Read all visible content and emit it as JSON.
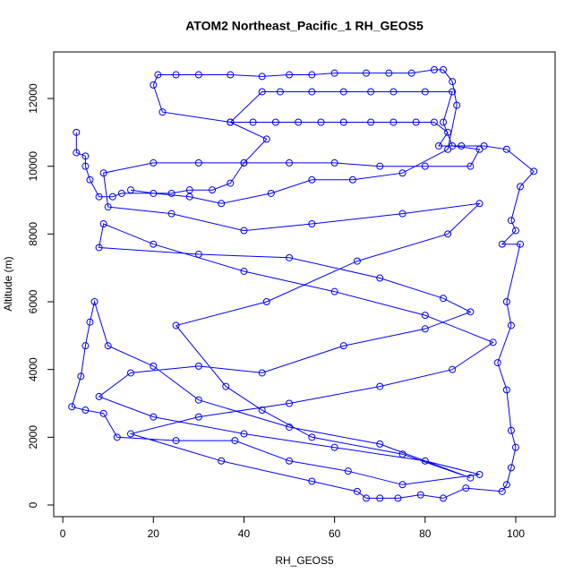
{
  "chart_data": {
    "type": "line",
    "title": "ATOM2 Northeast_Pacific_1 RH_GEOS5",
    "x_label": "RH_GEOS5",
    "y_label": "Altitude (m)",
    "color": "#0000ff",
    "markers": true,
    "xlim": [
      -2,
      108.7
    ],
    "ylim": [
      -344,
      13375
    ],
    "xticks": [
      0,
      20,
      40,
      60,
      80,
      100
    ],
    "yticks": [
      0,
      2000,
      4000,
      6000,
      8000,
      10000,
      12000
    ],
    "x": [
      3,
      3,
      5,
      5,
      6,
      8,
      11,
      13,
      24,
      28,
      33,
      37,
      40,
      45,
      37,
      42,
      47,
      52,
      57,
      62,
      68,
      73,
      78,
      82,
      85,
      83,
      88,
      93,
      98,
      104,
      101,
      99,
      100,
      97,
      101,
      98,
      99,
      96,
      98,
      99,
      100,
      99,
      98,
      97,
      89,
      84,
      79,
      74,
      70,
      67,
      65,
      55,
      35,
      15,
      30,
      50,
      70,
      86,
      95,
      80,
      60,
      40,
      20,
      9,
      8,
      30,
      50,
      70,
      84,
      90,
      80,
      62,
      44,
      30,
      15,
      8,
      20,
      40,
      60,
      80,
      92,
      75,
      63,
      50,
      38,
      25,
      12,
      9,
      5,
      2,
      4,
      5,
      6,
      7,
      10,
      20,
      30,
      50,
      70,
      90,
      75,
      55,
      44,
      36,
      25,
      45,
      65,
      85,
      92,
      75,
      55,
      40,
      24,
      10,
      9,
      20,
      30,
      40,
      50,
      60,
      70,
      80,
      90,
      92,
      86,
      84,
      86,
      80,
      73,
      68,
      62,
      55,
      48,
      44,
      37,
      22,
      20,
      21,
      25,
      30,
      37,
      44,
      50,
      55,
      60,
      67,
      72,
      77,
      82,
      84,
      86,
      87,
      85,
      75,
      64,
      55,
      46,
      35,
      28,
      20,
      15
    ],
    "values": [
      11000,
      10400,
      10300,
      10000,
      9600,
      9100,
      9100,
      9200,
      9200,
      9300,
      9300,
      9500,
      10100,
      10800,
      11300,
      11300,
      11300,
      11300,
      11300,
      11300,
      11300,
      11300,
      11300,
      11300,
      11000,
      10600,
      10600,
      10600,
      10500,
      9850,
      9400,
      8400,
      8100,
      7700,
      7700,
      6000,
      5300,
      4200,
      3400,
      2200,
      1700,
      1100,
      600,
      400,
      500,
      200,
      300,
      200,
      200,
      200,
      400,
      700,
      1300,
      2100,
      2600,
      3000,
      3500,
      4000,
      4800,
      5600,
      6300,
      6900,
      7700,
      8300,
      7600,
      7400,
      7300,
      6700,
      6100,
      5700,
      5200,
      4700,
      3900,
      4100,
      3900,
      3200,
      2600,
      2100,
      1700,
      1300,
      900,
      600,
      1000,
      1300,
      1900,
      1900,
      2000,
      2700,
      2800,
      2900,
      3800,
      4700,
      5400,
      6000,
      4700,
      4100,
      3100,
      2300,
      1800,
      800,
      1500,
      2000,
      2800,
      3500,
      5300,
      6000,
      7200,
      8000,
      8900,
      8600,
      8300,
      8100,
      8600,
      8800,
      9800,
      10100,
      10100,
      10100,
      10100,
      10100,
      10000,
      10000,
      10000,
      10500,
      10600,
      11300,
      12200,
      12200,
      12200,
      12200,
      12200,
      12200,
      12200,
      12200,
      11300,
      11600,
      12400,
      12700,
      12700,
      12700,
      12700,
      12650,
      12700,
      12700,
      12750,
      12750,
      12750,
      12750,
      12850,
      12850,
      12500,
      11800,
      10500,
      9800,
      9600,
      9600,
      9200,
      8900,
      9100,
      9200,
      9300
    ]
  }
}
